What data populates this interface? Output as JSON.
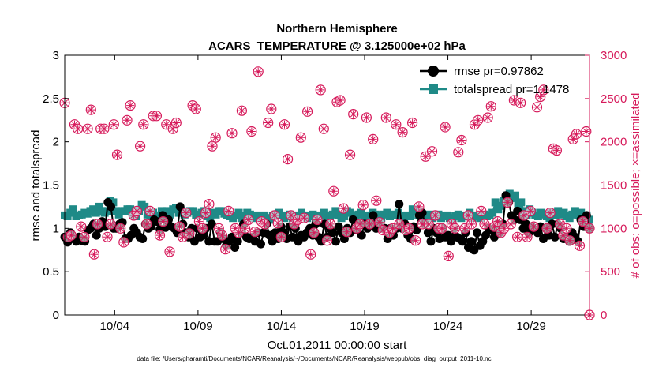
{
  "chart_data": {
    "type": "line",
    "title": "Northern Hemisphere",
    "subtitle": "ACARS_TEMPERATURE @ 3.125000e+02 hPa",
    "xlabel": "Oct.01,2011 00:00:00 start",
    "ylabel_left": "rmse and totalspread",
    "ylabel_right": "# of obs: o=possible; ×=assimilated",
    "footnote": "data file: /Users/gharamti/Documents/NCAR/Reanalysis/~/Documents/NCAR/Reanalysis/webpub/obs_diag_output_2011-10.nc",
    "xlim": [
      1,
      32.5
    ],
    "ylim_left": [
      0,
      3
    ],
    "ylim_right": [
      0,
      3000
    ],
    "x_ticks": [
      4,
      9,
      14,
      19,
      24,
      29
    ],
    "x_tick_labels": [
      "10/04",
      "10/09",
      "10/14",
      "10/19",
      "10/24",
      "10/29"
    ],
    "y_ticks_left": [
      0,
      0.5,
      1,
      1.5,
      2,
      2.5,
      3
    ],
    "y_tick_labels_left": [
      "0",
      "0.5",
      "1",
      "1.5",
      "2",
      "2.5",
      "3"
    ],
    "y_ticks_right": [
      0,
      500,
      1000,
      1500,
      2000,
      2500,
      3000
    ],
    "y_tick_labels_right": [
      "0",
      "500",
      "1000",
      "1500",
      "2000",
      "2500",
      "3000"
    ],
    "legend_position": "top-right",
    "colors": {
      "rmse": "#000000",
      "totalspread": "#1f8a87",
      "obs": "#d6195a"
    },
    "series": [
      {
        "name": "rmse pr=0.97862",
        "marker": "circle",
        "values": [
          0.9,
          0.84,
          0.95,
          0.88,
          0.85,
          0.9,
          0.86,
          0.85,
          0.98,
          1.0,
          1.05,
          0.92,
          1.0,
          1.08,
          1.02,
          1.3,
          1.25,
          1.0,
          1.0,
          1.05,
          1.07,
          0.88,
          0.88,
          0.92,
          1.0,
          0.95,
          0.9,
          0.88,
          1.05,
          1.0,
          1.02,
          1.1,
          1.08,
          0.99,
          1.15,
          1.01,
          1.1,
          1.02,
          1.0,
          0.95,
          1.25,
          1.05,
          0.95,
          0.9,
          1.0,
          0.85,
          1.0,
          0.9,
          0.92,
          1.0,
          0.85,
          1.05,
          0.85,
          0.85,
          0.95,
          0.88,
          0.8,
          0.85,
          0.9,
          0.78,
          0.85,
          0.95,
          1.05,
          0.9,
          0.88,
          0.9,
          0.85,
          0.95,
          0.82,
          0.95,
          1.05,
          0.92,
          0.85,
          0.95,
          0.88,
          1.02,
          0.95,
          0.88,
          1.02,
          0.9,
          1.0,
          0.85,
          0.92,
          0.9,
          0.95,
          1.0,
          0.92,
          1.05,
          0.9,
          0.85,
          1.05,
          0.9,
          1.0,
          0.95,
          0.85,
          1.02,
          0.95,
          0.88,
          1.0,
          0.95,
          1.1,
          0.98,
          1.05,
          0.92,
          1.05,
          1.0,
          1.05,
          1.15,
          1.0,
          1.05,
          1.0,
          1.0,
          0.88,
          1.0,
          0.92,
          1.0,
          1.28,
          1.0,
          1.05,
          0.92,
          0.88,
          1.02,
          0.98,
          1.15,
          1.18,
          1.05,
          0.95,
          0.85,
          1.0,
          0.95,
          0.88,
          1.0,
          0.9,
          0.92,
          0.85,
          1.0,
          0.9,
          0.88,
          0.85,
          0.95,
          0.78,
          0.85,
          0.75,
          0.95,
          0.8,
          0.85,
          0.92,
          1.0,
          0.98,
          0.9,
          1.05,
          0.95,
          1.05,
          1.38,
          1.3,
          1.15,
          1.1,
          1.2,
          1.1,
          1.0,
          1.05,
          0.95,
          1.02,
          0.98,
          0.95,
          1.02,
          0.88,
          1.0,
          0.92,
          1.05,
          0.9,
          1.05,
          1.0,
          0.88,
          0.9,
          0.85,
          0.95,
          0.9,
          0.85,
          1.1,
          1.02,
          1.15,
          1.0
        ]
      },
      {
        "name": "totalspread pr=1.1478",
        "marker": "square",
        "values": [
          1.15,
          1.14,
          1.18,
          1.22,
          1.14,
          1.15,
          1.16,
          1.18,
          1.17,
          1.2,
          1.22,
          1.18,
          1.25,
          1.2,
          1.18,
          1.2,
          1.32,
          1.3,
          1.2,
          1.16,
          1.2,
          1.2,
          1.22,
          1.22,
          1.15,
          1.14,
          1.2,
          1.27,
          1.25,
          1.16,
          1.14,
          1.18,
          1.15,
          1.15,
          1.2,
          1.18,
          1.2,
          1.16,
          1.22,
          1.24,
          1.18,
          1.2,
          1.16,
          1.18,
          1.2,
          1.2,
          1.15,
          1.16,
          1.18,
          1.2,
          1.14,
          1.12,
          1.18,
          1.16,
          1.2,
          1.2,
          1.17,
          1.15,
          1.14,
          1.12,
          1.15,
          1.18,
          1.12,
          1.14,
          1.18,
          1.16,
          1.12,
          1.15,
          1.14,
          1.12,
          1.15,
          1.12,
          1.1,
          1.14,
          1.16,
          1.18,
          1.15,
          1.12,
          1.14,
          1.16,
          1.12,
          1.14,
          1.15,
          1.18,
          1.15,
          1.12,
          1.14,
          1.16,
          1.12,
          1.14,
          1.15,
          1.18,
          1.12,
          1.14,
          1.16,
          1.2,
          1.15,
          1.12,
          1.14,
          1.2,
          1.18,
          1.15,
          1.12,
          1.16,
          1.18,
          1.14,
          1.12,
          1.15,
          1.18,
          1.16,
          1.14,
          1.12,
          1.16,
          1.18,
          1.14,
          1.16,
          1.15,
          1.18,
          1.14,
          1.12,
          1.15,
          1.14,
          1.22,
          1.2,
          1.15,
          1.12,
          1.1,
          1.14,
          1.16,
          1.12,
          1.14,
          1.16,
          1.12,
          1.14,
          1.15,
          1.12,
          1.1,
          1.14,
          1.16,
          1.12,
          1.14,
          1.15,
          1.18,
          1.12,
          1.15,
          1.14,
          1.12,
          1.16,
          1.14,
          1.15,
          1.18,
          1.3,
          1.22,
          1.26,
          1.32,
          1.38,
          1.4,
          1.35,
          1.38,
          1.28,
          1.3,
          1.2,
          1.15,
          1.22,
          1.18,
          1.15,
          1.14,
          1.18,
          1.16,
          1.14,
          1.12,
          1.18,
          1.15,
          1.2,
          1.16,
          1.18,
          1.14,
          1.12,
          1.16,
          1.2,
          1.15,
          1.18,
          1.12,
          1.15,
          1.1
        ]
      },
      {
        "name": "obs_possible",
        "marker": "circled-star",
        "axis": "right",
        "values": [
          2450,
          900,
          920,
          2200,
          2150,
          1020,
          900,
          2150,
          2370,
          700,
          1050,
          2150,
          2150,
          900,
          1050,
          2200,
          1850,
          1000,
          840,
          2250,
          2420,
          1150,
          1200,
          1950,
          2200,
          1050,
          1200,
          2300,
          2300,
          920,
          1080,
          2200,
          730,
          2150,
          2220,
          1020,
          900,
          1180,
          940,
          2420,
          2380,
          1080,
          1000,
          1180,
          1280,
          1950,
          2050,
          1000,
          920,
          760,
          1200,
          2100,
          1000,
          950,
          2360,
          1000,
          1100,
          2120,
          960,
          2810,
          1080,
          1050,
          2220,
          2380,
          1150,
          1060,
          900,
          2200,
          1800,
          1150,
          1050,
          1100,
          2050,
          1120,
          2350,
          700,
          950,
          1100,
          2600,
          2150,
          860,
          1050,
          1430,
          2460,
          2480,
          1230,
          960,
          1850,
          2320,
          1000,
          1050,
          1270,
          2280,
          1050,
          2030,
          1320,
          1070,
          980,
          2280,
          950,
          1000,
          2200,
          1050,
          2110,
          980,
          1000,
          2220,
          860,
          1250,
          1050,
          1830,
          1050,
          1890,
          1150,
          1000,
          1000,
          2170,
          680,
          1050,
          1000,
          1880,
          2020,
          1000,
          1150,
          1050,
          2200,
          2250,
          1200,
          1050,
          2280,
          2410,
          1020,
          1080,
          950,
          1000,
          1300,
          1050,
          2480,
          900,
          2450,
          1150,
          900,
          1200,
          1020,
          2400,
          2520,
          2600,
          1000,
          1180,
          1920,
          1900,
          1050,
          920,
          1000,
          860,
          2030,
          2090,
          800,
          1080,
          2120,
          1000
        ]
      }
    ]
  }
}
